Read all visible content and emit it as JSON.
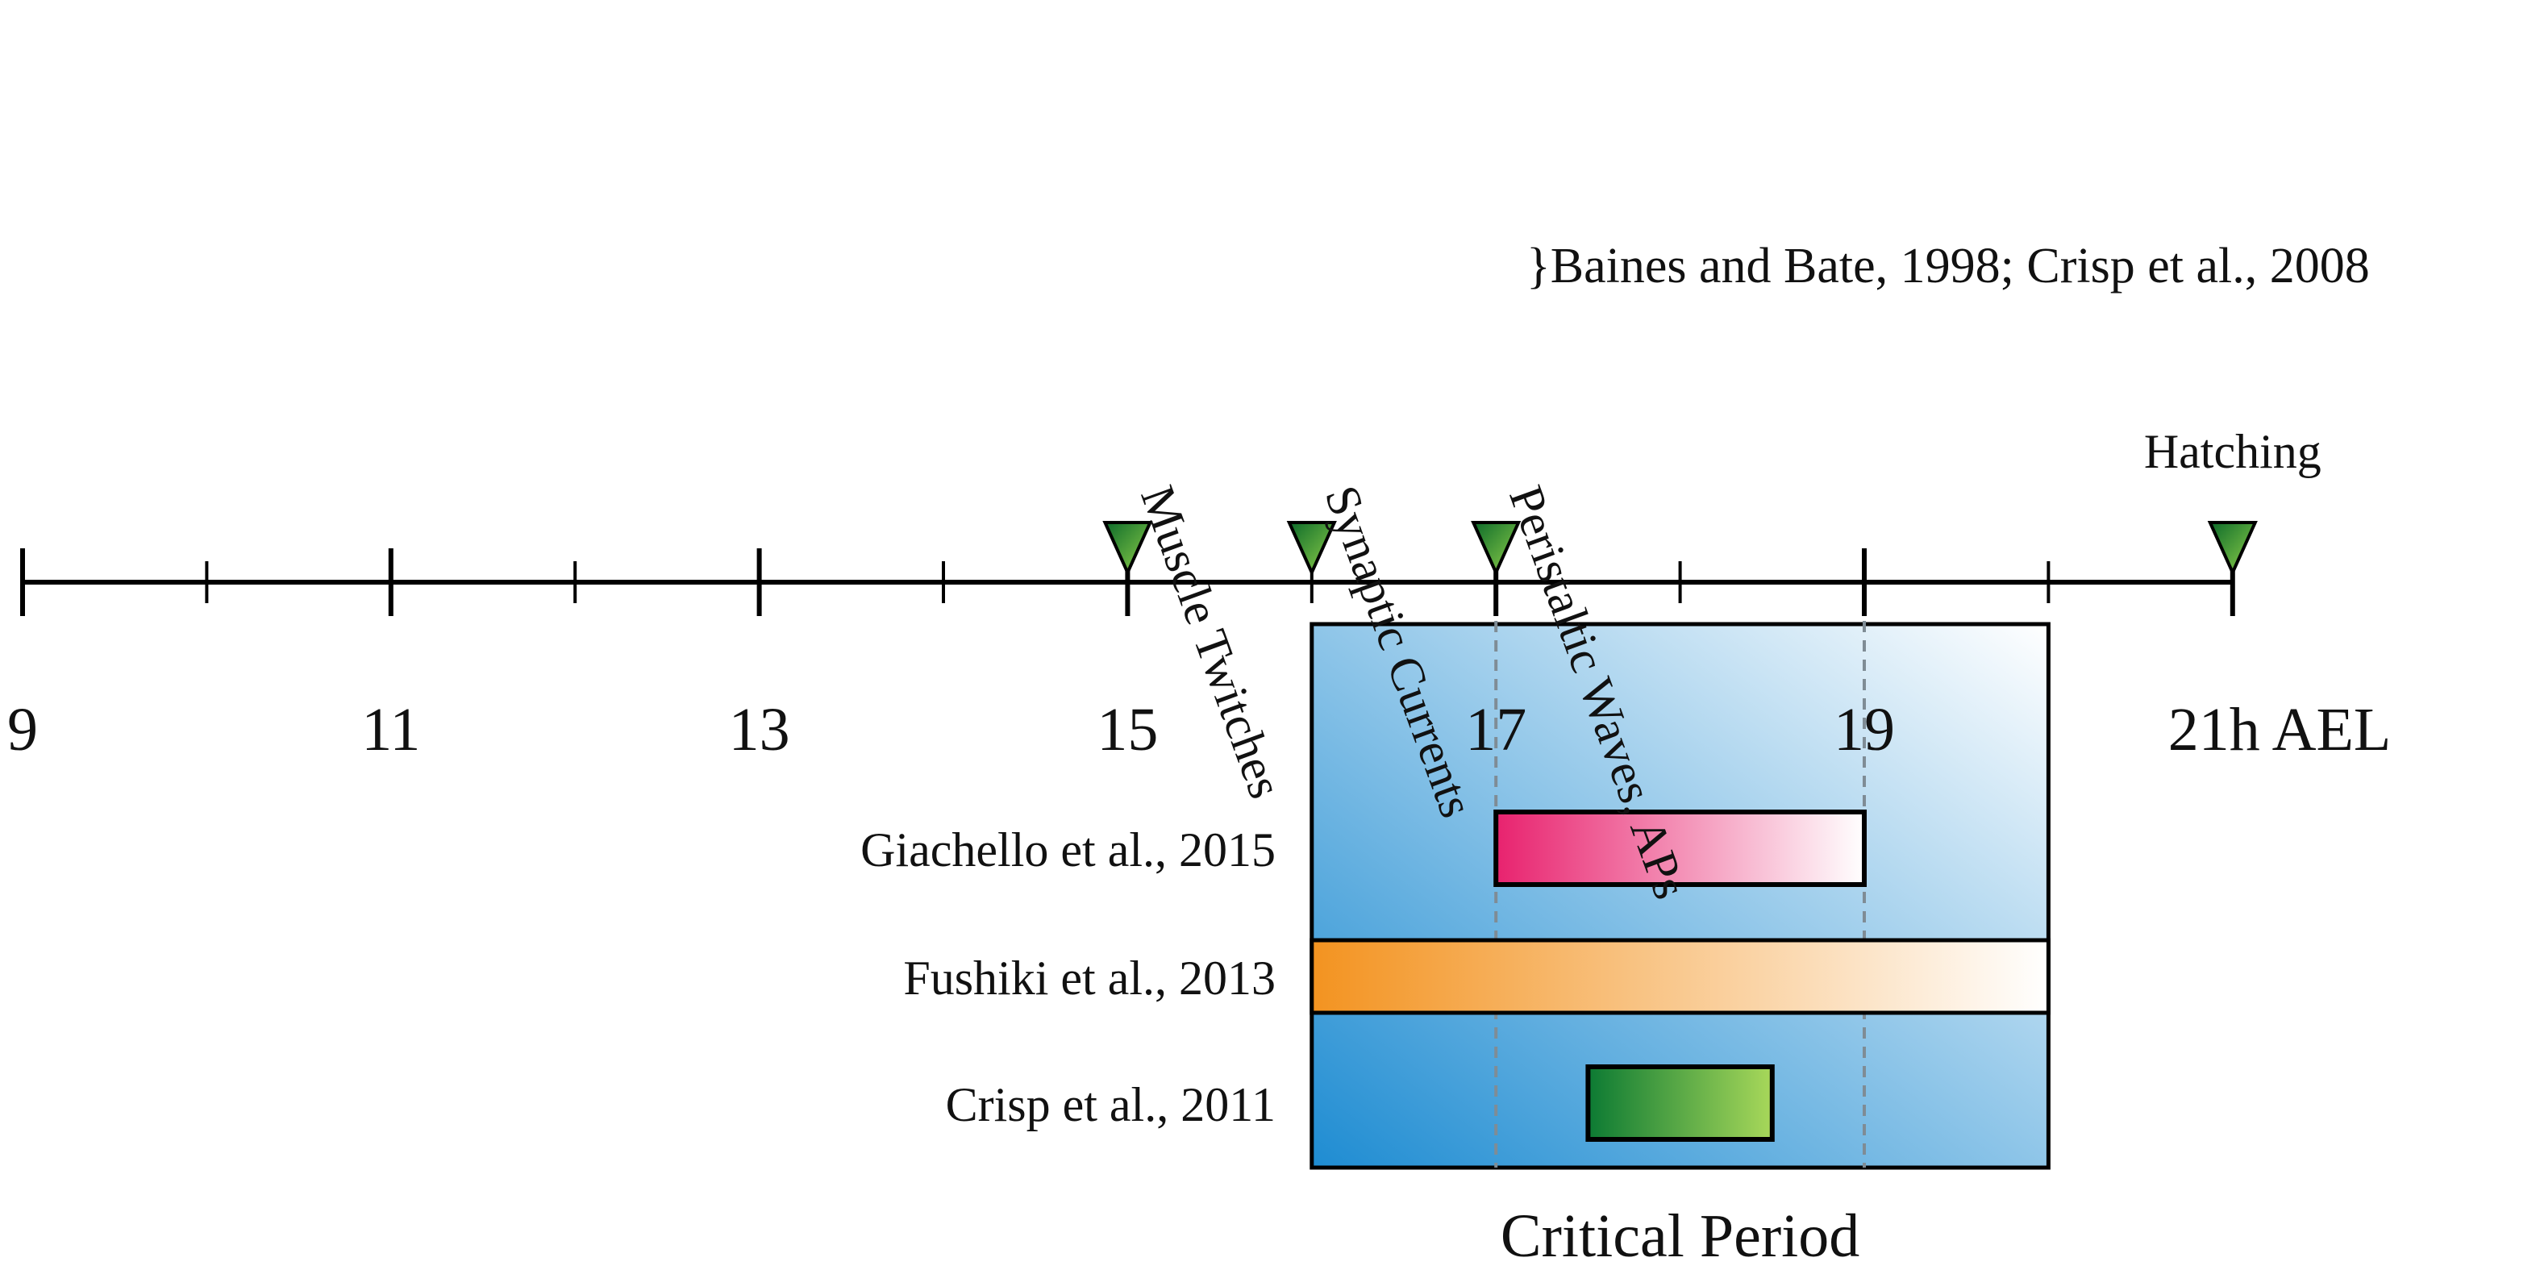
{
  "axis": {
    "tick_labels": [
      "9",
      "11",
      "13",
      "15",
      "17",
      "19",
      "21h AEL"
    ],
    "tick_values": [
      9,
      11,
      13,
      15,
      17,
      19,
      21
    ],
    "minor_values": [
      10,
      12,
      14,
      16,
      18,
      20
    ],
    "range": [
      9,
      21
    ]
  },
  "events": [
    {
      "label": "Muscle Twitches",
      "time": 15
    },
    {
      "label": "Synaptic Currents",
      "time": 16
    },
    {
      "label": "Peristaltic Waves, APs",
      "time": 17
    },
    {
      "label": "Hatching",
      "time": 21
    }
  ],
  "event_citation": "}Baines and Bate, 1998; Crisp et al., 2008",
  "critical_period": {
    "label": "Critical Period",
    "start": 16,
    "end": 20
  },
  "guide_times": [
    17,
    19
  ],
  "studies": [
    {
      "label": "Giachello et al., 2015",
      "start": 17,
      "end": 19,
      "color_start": "#e8226e",
      "color_end": "#ffffff"
    },
    {
      "label": "Fushiki et al., 2013",
      "start": 16,
      "end": 20,
      "color_start": "#f39320",
      "color_end": "#ffffff"
    },
    {
      "label": "Crisp et al., 2011",
      "start": 17.5,
      "end": 18.5,
      "color_start": "#0c7a33",
      "color_end": "#a8d85a"
    }
  ],
  "colors": {
    "critical_start": "#1e8cd2",
    "critical_end": "#ffffff",
    "marker": "#2e9a3c",
    "guide": "#7f8c95"
  }
}
